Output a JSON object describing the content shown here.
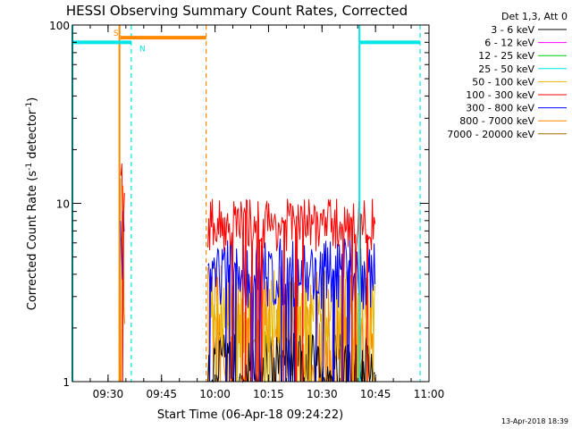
{
  "chart_data": {
    "type": "line",
    "title": "HESSI Observing Summary Count Rates, Corrected",
    "xlabel": "Start Time (06-Apr-18 09:24:22)",
    "ylabel": "Corrected Count Rate (s",
    "ylabel_sup1": "-1",
    "ylabel_mid": " detector",
    "ylabel_sup2": "-1",
    "ylabel_end": ")",
    "yscale": "log",
    "ylim": [
      1,
      100
    ],
    "xlim_minutes": [
      -4,
      96
    ],
    "x_origin": "09:24",
    "x_ticks": [
      {
        "label": "09:30",
        "min": 6
      },
      {
        "label": "09:45",
        "min": 21
      },
      {
        "label": "10:00",
        "min": 36
      },
      {
        "label": "10:15",
        "min": 51
      },
      {
        "label": "10:30",
        "min": 66
      },
      {
        "label": "10:45",
        "min": 81
      },
      {
        "label": "11:00",
        "min": 96
      }
    ],
    "y_ticks": [
      {
        "label": "100",
        "value": 100
      },
      {
        "label": "10",
        "value": 10
      },
      {
        "label": "1",
        "value": 1
      }
    ],
    "legend": {
      "header": "Det 1,3, Att 0",
      "position": "right",
      "items": [
        {
          "label": "3 - 6 keV",
          "color": "#000000"
        },
        {
          "label": "6 - 12 keV",
          "color": "#ff00ff"
        },
        {
          "label": "12 - 25 keV",
          "color": "#00cc00"
        },
        {
          "label": "25 - 50 keV",
          "color": "#00e5e5"
        },
        {
          "label": "50 - 100 keV",
          "color": "#e5b800"
        },
        {
          "label": "100 - 300 keV",
          "color": "#ff0000"
        },
        {
          "label": "300 - 800 keV",
          "color": "#0000ff"
        },
        {
          "label": "800 - 7000 keV",
          "color": "#ff8800"
        },
        {
          "label": "7000 - 20000 keV",
          "color": "#a07000"
        }
      ]
    },
    "flags": [
      {
        "label": "S",
        "color": "#ff8800",
        "start_min": 9.5,
        "end_min": 33.5,
        "value": 85
      },
      {
        "label": "N",
        "color": "#00e5e5",
        "start_min": -4,
        "end_min": 12.5,
        "value": 80
      },
      {
        "label": "",
        "color": "#00e5e5",
        "start_min": 76.5,
        "end_min": 93.5,
        "value": 80
      }
    ],
    "vlines_solid": [
      {
        "min": -4,
        "color": "#00e5e5"
      },
      {
        "min": 9.2,
        "color": "#ff8800"
      },
      {
        "min": 76.5,
        "color": "#00e5e5"
      }
    ],
    "vlines_dashed": [
      {
        "min": 12.5,
        "color": "#00e5e5"
      },
      {
        "min": 33.5,
        "color": "#ff8800"
      },
      {
        "min": 93.5,
        "color": "#00e5e5"
      }
    ],
    "series": [
      {
        "color": "#ff8800",
        "segments": [
          {
            "start_min": 9.2,
            "end_min": 10.8,
            "base": 4.0,
            "spread": 0.6
          },
          {
            "start_min": 34.0,
            "end_min": 81.0,
            "base": 1.6,
            "spread": 0.45
          }
        ]
      },
      {
        "color": "#000000",
        "segments": [
          {
            "start_min": 34.0,
            "end_min": 81.0,
            "base": 1.2,
            "spread": 0.2
          }
        ]
      },
      {
        "color": "#e5b800",
        "segments": [
          {
            "start_min": 34.5,
            "end_min": 81.0,
            "base": 2.4,
            "spread": 0.25
          }
        ]
      },
      {
        "color": "#0000ff",
        "segments": [
          {
            "start_min": 9.5,
            "end_min": 10.7,
            "base": 6.5,
            "spread": 0.25
          },
          {
            "start_min": 34.0,
            "end_min": 81.0,
            "base": 4.0,
            "spread": 0.2
          }
        ]
      },
      {
        "color": "#ff0000",
        "segments": [
          {
            "start_min": 9.6,
            "end_min": 10.8,
            "base": 11.0,
            "spread": 0.25
          },
          {
            "start_min": 34.0,
            "end_min": 81.0,
            "base": 7.6,
            "spread": 0.15
          }
        ]
      }
    ]
  },
  "footer": {
    "timestamp": "13-Apr-2018 18:39"
  }
}
